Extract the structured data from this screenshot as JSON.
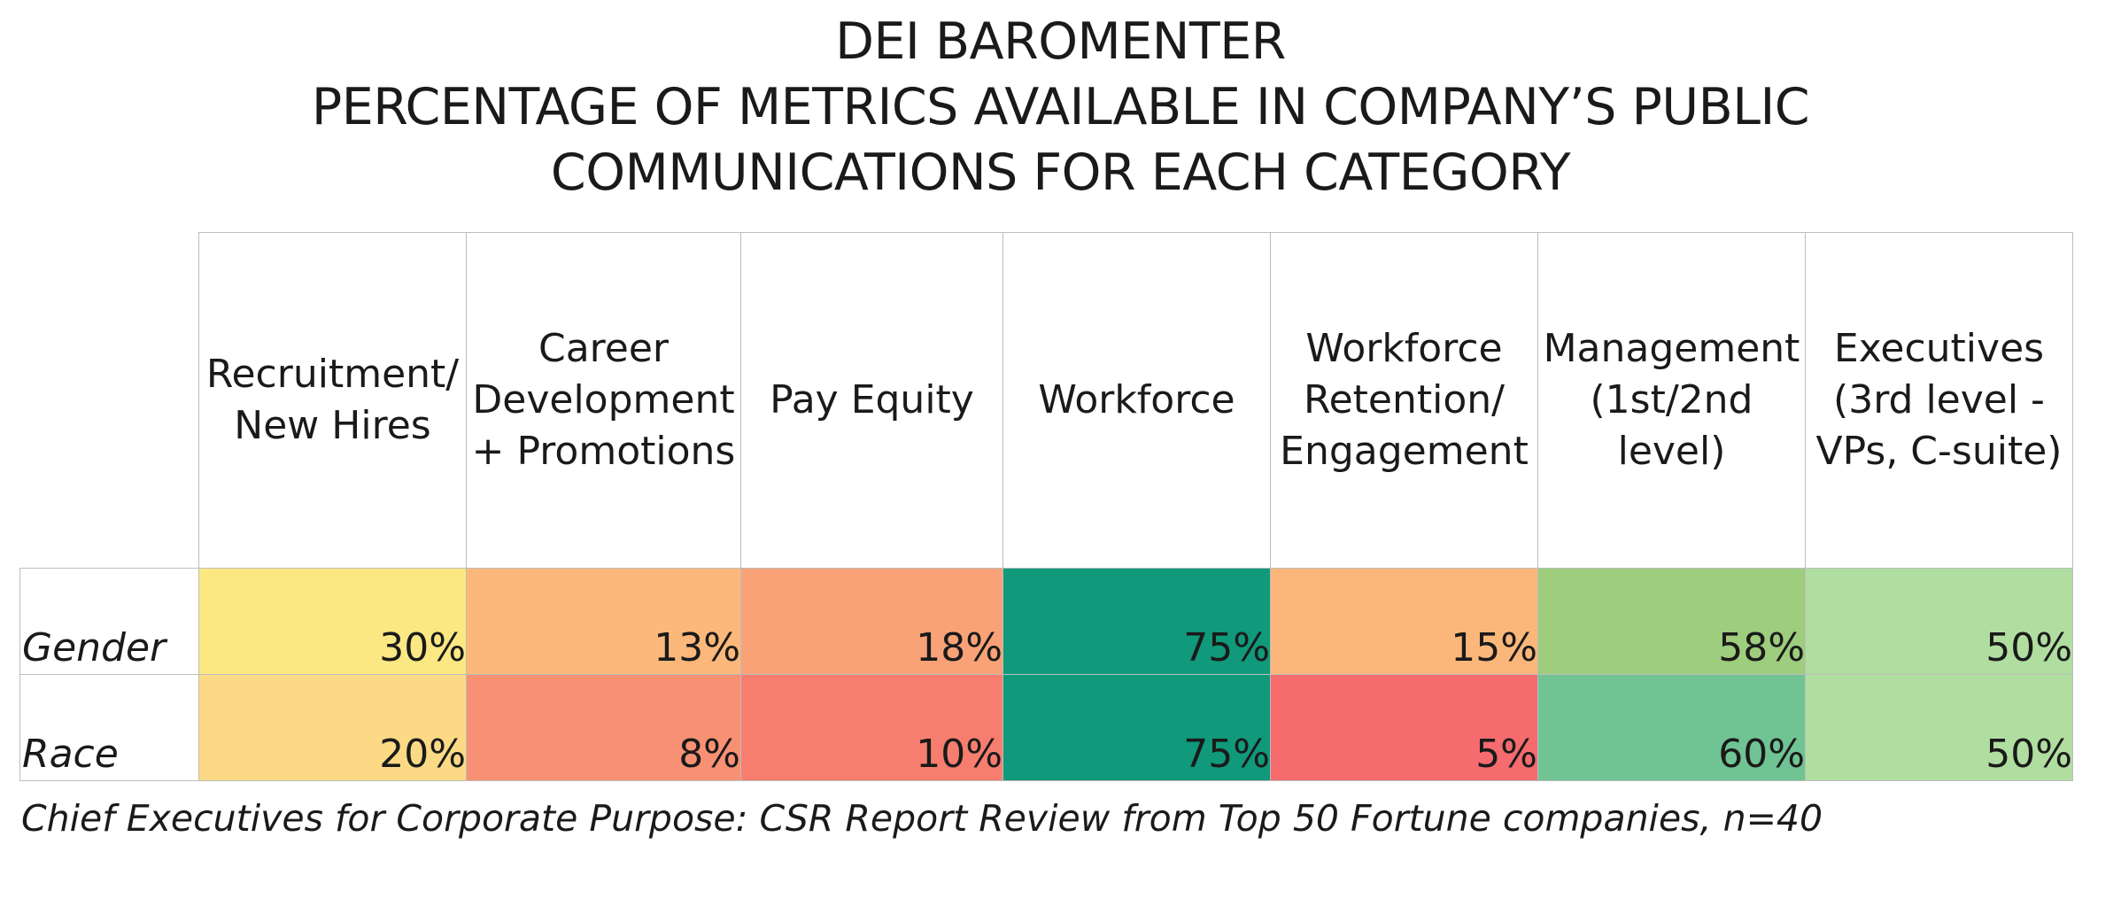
{
  "chart_data": {
    "type": "heatmap",
    "title": [
      "DEI BAROMENTER",
      "PERCENTAGE OF METRICS AVAILABLE IN COMPANY’S PUBLIC",
      "COMMUNICATIONS FOR EACH CATEGORY"
    ],
    "columns": [
      "Recruitment/\nNew Hires",
      "Career\nDevelopment\n+ Promotions",
      "Pay Equity",
      "Workforce",
      "Workforce\nRetention/\nEngagement",
      "Management\n(1st/2nd\nlevel)",
      "Executives\n(3rd level -\nVPs, C-suite)"
    ],
    "rows": [
      {
        "label": "Gender",
        "values": [
          30,
          13,
          18,
          75,
          15,
          58,
          50
        ],
        "display": [
          "30%",
          "13%",
          "18%",
          "75%",
          "15%",
          "58%",
          "50%"
        ]
      },
      {
        "label": "Race",
        "values": [
          20,
          8,
          10,
          75,
          5,
          60,
          50
        ],
        "display": [
          "20%",
          "8%",
          "10%",
          "75%",
          "5%",
          "60%",
          "50%"
        ]
      }
    ],
    "cell_colors": [
      [
        "#fce883",
        "#fbb87a",
        "#f9a277",
        "#10997a",
        "#fbb77a",
        "#9dcd7d",
        "#b0dea0"
      ],
      [
        "#fcd985",
        "#f89174",
        "#f77e6f",
        "#10997a",
        "#f56b6e",
        "#70c393",
        "#b0dea0"
      ]
    ],
    "caption": "Chief Executives for Corporate Purpose: CSR Report Review from Top 50  Fortune companies, n=40"
  }
}
